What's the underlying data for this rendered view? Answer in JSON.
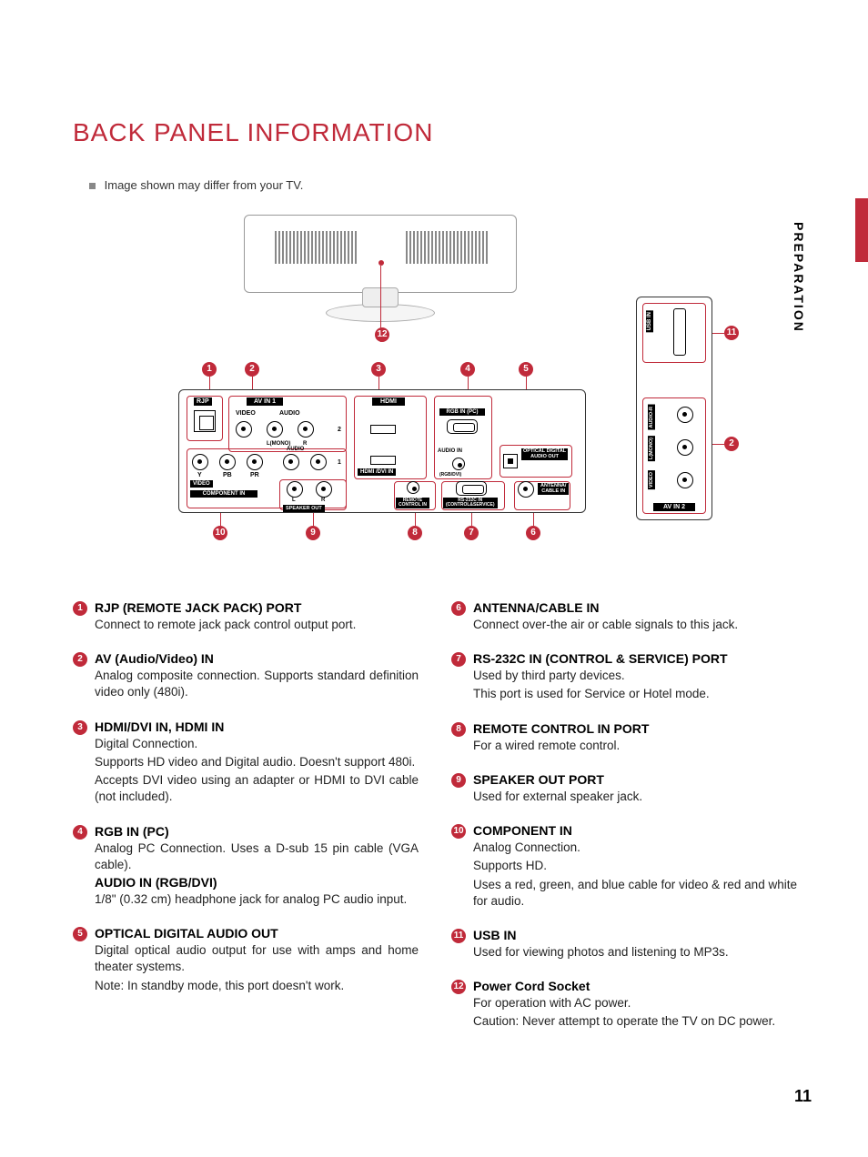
{
  "page": {
    "title": "BACK PANEL INFORMATION",
    "title_color": "#c02a3a",
    "note": "Image shown may differ from your TV.",
    "side_tab": "PREPARATION",
    "page_number": "11"
  },
  "panel_labels": {
    "rjp": "RJP",
    "avin1": "AV IN 1",
    "video": "VIDEO",
    "audio": "AUDIO",
    "lmono": "L(MONO)",
    "r": "R",
    "hdmi_logo": "HDMI",
    "rgb_in_pc": "RGB IN (PC)",
    "audio_in": "AUDIO IN",
    "rgb_dvi": "(RGB/DVI)",
    "optical": "OPTICAL DIGITAL\nAUDIO OUT",
    "hdmi_dvi_in": "HDMI /DVI IN",
    "y": "Y",
    "pb": "PB",
    "pr": "PR",
    "video2": "VIDEO",
    "audio2": "AUDIO",
    "component_in": "COMPONENT IN",
    "l": "L",
    "r2": "R",
    "speaker_out": "SPEAKER OUT",
    "remote_ctrl_in": "REMOTE\nCONTROL IN",
    "rs232c": "RS-232C IN\n(CONTROL&SERVICE)",
    "antenna": "ANTENNA/\nCABLE IN",
    "num_1": "1",
    "num_2": "2",
    "side_usb_in": "USB IN",
    "side_audio_r": "AUDIO-R",
    "side_lmono": "L(MONO)",
    "side_video": "VIDEO",
    "side_avin2": "AV IN 2"
  },
  "callouts": {
    "top": [
      "1",
      "2",
      "3",
      "4",
      "5"
    ],
    "bottom": [
      "10",
      "9",
      "8",
      "7",
      "6"
    ],
    "side": [
      "11",
      "2"
    ],
    "cord": "12"
  },
  "items": [
    {
      "n": "1",
      "title": "RJP (REMOTE JACK PACK) PORT",
      "paras": [
        "Connect to remote jack pack control output port."
      ]
    },
    {
      "n": "2",
      "title": "AV (Audio/Video) IN",
      "paras": [
        "Analog composite connection. Supports standard definition video only (480i)."
      ]
    },
    {
      "n": "3",
      "title": "HDMI/DVI IN, HDMI IN",
      "paras": [
        "Digital Connection.",
        "Supports HD video and Digital audio. Doesn't support 480i.",
        "Accepts DVI video using an adapter or HDMI to DVI cable (not included)."
      ]
    },
    {
      "n": "4",
      "title": "RGB IN (PC)",
      "paras": [
        "Analog PC Connection. Uses a D-sub 15 pin cable (VGA cable)."
      ],
      "subtitle": "AUDIO IN (RGB/DVI)",
      "subparas": [
        "1/8\" (0.32 cm) headphone jack for analog PC audio input."
      ]
    },
    {
      "n": "5",
      "title": "OPTICAL DIGITAL AUDIO OUT",
      "paras": [
        "Digital optical audio output for use with amps and home theater systems.",
        "Note: In standby mode, this port doesn't work."
      ]
    },
    {
      "n": "6",
      "title": "ANTENNA/CABLE IN",
      "paras": [
        "Connect over-the air or cable signals to this jack."
      ]
    },
    {
      "n": "7",
      "title": "RS-232C IN (CONTROL & SERVICE) PORT",
      "paras": [
        "Used by third party devices.",
        "This port is used for Service or Hotel mode."
      ]
    },
    {
      "n": "8",
      "title": "REMOTE CONTROL IN PORT",
      "paras": [
        "For a wired remote control."
      ]
    },
    {
      "n": "9",
      "title": "SPEAKER OUT PORT",
      "paras": [
        "Used for external speaker jack."
      ]
    },
    {
      "n": "10",
      "title": "COMPONENT IN",
      "paras": [
        "Analog Connection.",
        "Supports HD.",
        "Uses a red, green, and blue cable for video & red and white for audio."
      ]
    },
    {
      "n": "11",
      "title": "USB IN",
      "paras": [
        "Used for viewing photos and listening to MP3s."
      ]
    },
    {
      "n": "12",
      "title": "Power Cord Socket",
      "paras": [
        "For operation with AC power.",
        "Caution: Never attempt to operate the TV on DC power."
      ]
    }
  ],
  "layout": {
    "left_col_count": 5
  }
}
